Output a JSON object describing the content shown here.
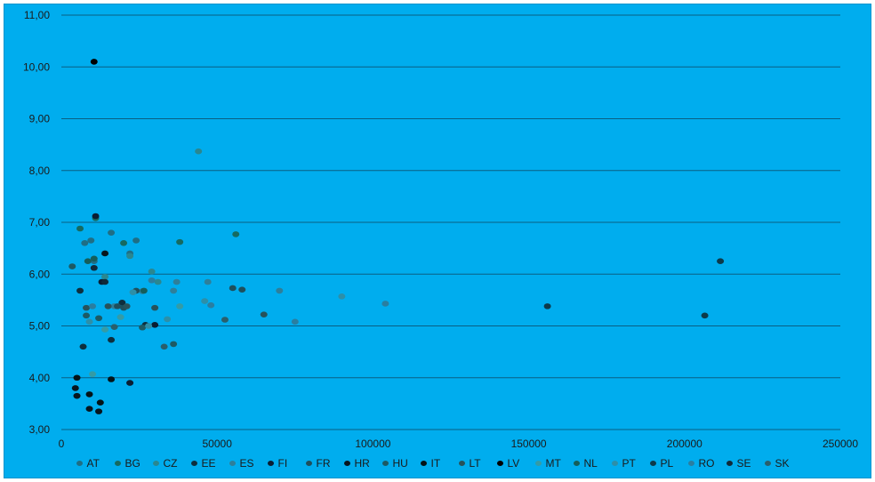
{
  "chart_data": {
    "type": "scatter",
    "title": "",
    "xlabel": "",
    "ylabel": "",
    "xlim": [
      0,
      250000
    ],
    "ylim": [
      3,
      11
    ],
    "x_ticks": [
      0,
      50000,
      100000,
      150000,
      200000,
      250000
    ],
    "y_ticks": [
      3,
      4,
      5,
      6,
      7,
      8,
      9,
      10,
      11
    ],
    "y_tick_labels": [
      "3,00",
      "4,00",
      "5,00",
      "6,00",
      "7,00",
      "8,00",
      "9,00",
      "10,00",
      "11,00"
    ],
    "x_tick_labels": [
      "0",
      "50000",
      "100000",
      "150000",
      "200000",
      "250000"
    ],
    "grid": "horizontal",
    "legend_position": "bottom",
    "series": [
      {
        "name": "AT",
        "color": "#1f6e85",
        "points": [
          [
            7500,
            6.6
          ],
          [
            9500,
            6.65
          ],
          [
            10500,
            6.25
          ],
          [
            16000,
            6.8
          ],
          [
            22000,
            6.4
          ],
          [
            24000,
            6.65
          ]
        ]
      },
      {
        "name": "BG",
        "color": "#166a60",
        "points": [
          [
            6000,
            6.88
          ],
          [
            11000,
            7.08
          ],
          [
            20000,
            6.6
          ],
          [
            38000,
            6.62
          ],
          [
            56000,
            6.77
          ]
        ]
      },
      {
        "name": "CZ",
        "color": "#2a8790",
        "points": [
          [
            14000,
            5.95
          ],
          [
            22000,
            6.35
          ],
          [
            29000,
            6.05
          ],
          [
            31000,
            5.85
          ],
          [
            44000,
            8.37
          ]
        ]
      },
      {
        "name": "EE",
        "color": "#0e2f3e",
        "points": [
          [
            6000,
            5.68
          ],
          [
            7000,
            4.6
          ],
          [
            16000,
            4.73
          ],
          [
            19500,
            5.45
          ],
          [
            27000,
            5.02
          ]
        ]
      },
      {
        "name": "ES",
        "color": "#2e7f9a",
        "points": [
          [
            17000,
            5.38
          ],
          [
            26000,
            5.67
          ],
          [
            36000,
            5.68
          ],
          [
            37000,
            5.85
          ],
          [
            47000,
            5.85
          ],
          [
            70000,
            5.68
          ]
        ]
      },
      {
        "name": "FI",
        "color": "#0a1e33",
        "points": [
          [
            11000,
            7.12
          ],
          [
            13000,
            5.85
          ],
          [
            22000,
            3.9
          ],
          [
            30000,
            5.02
          ]
        ]
      },
      {
        "name": "FR",
        "color": "#1e4f5c",
        "points": [
          [
            18000,
            5.38
          ],
          [
            20000,
            5.35
          ],
          [
            24000,
            5.68
          ],
          [
            55000,
            5.73
          ],
          [
            58000,
            5.7
          ]
        ]
      },
      {
        "name": "HR",
        "color": "#07161f",
        "points": [
          [
            4500,
            3.8
          ],
          [
            5000,
            3.65
          ],
          [
            9000,
            3.4
          ],
          [
            12000,
            3.35
          ],
          [
            14000,
            6.4
          ]
        ]
      },
      {
        "name": "HU",
        "color": "#1d5a64",
        "points": [
          [
            3500,
            6.15
          ],
          [
            8000,
            5.2
          ],
          [
            12000,
            5.15
          ],
          [
            26000,
            4.97
          ],
          [
            36000,
            4.65
          ]
        ]
      },
      {
        "name": "IT",
        "color": "#041418",
        "points": [
          [
            5000,
            4.0
          ],
          [
            9000,
            3.68
          ],
          [
            12500,
            3.52
          ],
          [
            16000,
            3.97
          ]
        ]
      },
      {
        "name": "LT",
        "color": "#27525a",
        "points": [
          [
            8000,
            5.35
          ],
          [
            15000,
            5.38
          ],
          [
            21000,
            5.38
          ],
          [
            30000,
            5.35
          ],
          [
            65000,
            5.22
          ]
        ]
      },
      {
        "name": "LV",
        "color": "#000000",
        "points": [
          [
            10500,
            10.1
          ]
        ]
      },
      {
        "name": "MT",
        "color": "#349ba6",
        "points": [
          [
            10000,
            4.07
          ],
          [
            14000,
            4.93
          ],
          [
            19000,
            5.17
          ],
          [
            38000,
            5.38
          ]
        ]
      },
      {
        "name": "NL",
        "color": "#155e5a",
        "points": [
          [
            8500,
            6.25
          ],
          [
            10500,
            6.3
          ],
          [
            26500,
            5.68
          ]
        ]
      },
      {
        "name": "PT",
        "color": "#2d8fa8",
        "points": [
          [
            9000,
            5.08
          ],
          [
            23000,
            5.65
          ],
          [
            28000,
            5.0
          ],
          [
            34000,
            5.13
          ],
          [
            46000,
            5.48
          ],
          [
            90000,
            5.57
          ]
        ]
      },
      {
        "name": "PL",
        "color": "#0d3a4a",
        "points": [
          [
            156000,
            5.38
          ],
          [
            206500,
            5.2
          ],
          [
            211500,
            6.25
          ]
        ]
      },
      {
        "name": "RO",
        "color": "#2a7ea0",
        "points": [
          [
            10000,
            5.38
          ],
          [
            29000,
            5.88
          ],
          [
            48000,
            5.4
          ],
          [
            75000,
            5.08
          ],
          [
            104000,
            5.43
          ]
        ]
      },
      {
        "name": "SE",
        "color": "#0f2a3a",
        "points": [
          [
            10500,
            6.12
          ],
          [
            14000,
            5.85
          ]
        ]
      },
      {
        "name": "SK",
        "color": "#2a5f6c",
        "points": [
          [
            17000,
            4.98
          ],
          [
            33000,
            4.6
          ],
          [
            52500,
            5.12
          ]
        ]
      }
    ]
  }
}
